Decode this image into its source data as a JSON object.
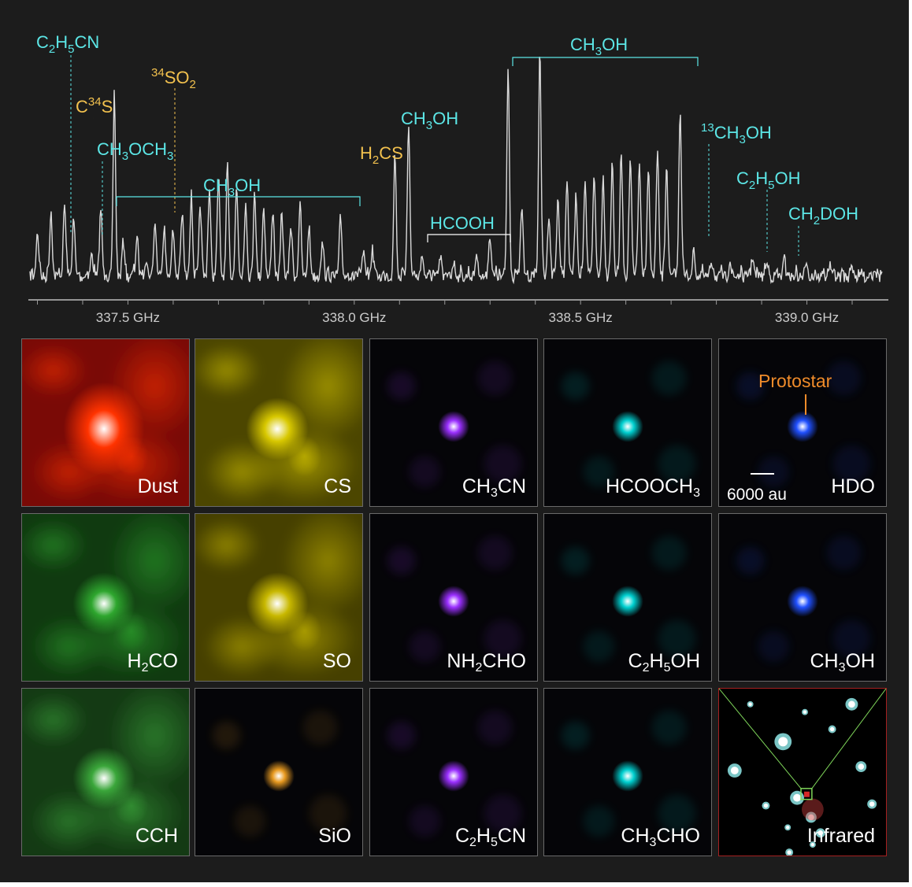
{
  "chart_data": {
    "type": "line",
    "title": "",
    "xlabel": "",
    "ylabel": "",
    "x_unit": "GHz",
    "xlim": [
      337.28,
      339.18
    ],
    "x_ticks": [
      337.5,
      338.0,
      338.5,
      339.0
    ],
    "x_tick_labels": [
      "337.5 GHz",
      "338.0 GHz",
      "338.5 GHz",
      "339.0 GHz"
    ],
    "grid": false,
    "line_color": "#d9d9d9",
    "lines": [
      {
        "x": 337.3,
        "h": 0.2
      },
      {
        "x": 337.33,
        "h": 0.28
      },
      {
        "x": 337.36,
        "h": 0.32
      },
      {
        "x": 337.38,
        "h": 0.25
      },
      {
        "x": 337.42,
        "h": 0.1
      },
      {
        "x": 337.44,
        "h": 0.3
      },
      {
        "x": 337.47,
        "h": 0.78
      },
      {
        "x": 337.49,
        "h": 0.15
      },
      {
        "x": 337.52,
        "h": 0.18
      },
      {
        "x": 337.54,
        "h": 0.08
      },
      {
        "x": 337.56,
        "h": 0.24
      },
      {
        "x": 337.58,
        "h": 0.22
      },
      {
        "x": 337.6,
        "h": 0.2
      },
      {
        "x": 337.62,
        "h": 0.28
      },
      {
        "x": 337.64,
        "h": 0.35
      },
      {
        "x": 337.66,
        "h": 0.3
      },
      {
        "x": 337.68,
        "h": 0.38
      },
      {
        "x": 337.7,
        "h": 0.42
      },
      {
        "x": 337.72,
        "h": 0.46
      },
      {
        "x": 337.74,
        "h": 0.4
      },
      {
        "x": 337.76,
        "h": 0.32
      },
      {
        "x": 337.78,
        "h": 0.36
      },
      {
        "x": 337.8,
        "h": 0.3
      },
      {
        "x": 337.82,
        "h": 0.28
      },
      {
        "x": 337.84,
        "h": 0.26
      },
      {
        "x": 337.86,
        "h": 0.22
      },
      {
        "x": 337.88,
        "h": 0.3
      },
      {
        "x": 337.9,
        "h": 0.2
      },
      {
        "x": 337.93,
        "h": 0.15
      },
      {
        "x": 337.97,
        "h": 0.25
      },
      {
        "x": 338.02,
        "h": 0.1
      },
      {
        "x": 338.04,
        "h": 0.12
      },
      {
        "x": 338.09,
        "h": 0.52
      },
      {
        "x": 338.12,
        "h": 0.68
      },
      {
        "x": 338.15,
        "h": 0.08
      },
      {
        "x": 338.19,
        "h": 0.07
      },
      {
        "x": 338.22,
        "h": 0.06
      },
      {
        "x": 338.27,
        "h": 0.09
      },
      {
        "x": 338.3,
        "h": 0.18
      },
      {
        "x": 338.34,
        "h": 0.9
      },
      {
        "x": 338.37,
        "h": 0.3
      },
      {
        "x": 338.41,
        "h": 0.98
      },
      {
        "x": 338.43,
        "h": 0.28
      },
      {
        "x": 338.45,
        "h": 0.35
      },
      {
        "x": 338.47,
        "h": 0.42
      },
      {
        "x": 338.49,
        "h": 0.36
      },
      {
        "x": 338.51,
        "h": 0.4
      },
      {
        "x": 338.53,
        "h": 0.46
      },
      {
        "x": 338.55,
        "h": 0.44
      },
      {
        "x": 338.57,
        "h": 0.5
      },
      {
        "x": 338.59,
        "h": 0.54
      },
      {
        "x": 338.61,
        "h": 0.52
      },
      {
        "x": 338.63,
        "h": 0.5
      },
      {
        "x": 338.65,
        "h": 0.46
      },
      {
        "x": 338.67,
        "h": 0.54
      },
      {
        "x": 338.69,
        "h": 0.48
      },
      {
        "x": 338.72,
        "h": 0.74
      },
      {
        "x": 338.75,
        "h": 0.1
      },
      {
        "x": 338.79,
        "h": 0.06
      },
      {
        "x": 338.83,
        "h": 0.05
      },
      {
        "x": 338.88,
        "h": 0.09
      },
      {
        "x": 338.91,
        "h": 0.06
      },
      {
        "x": 338.95,
        "h": 0.07
      },
      {
        "x": 339.0,
        "h": 0.05
      },
      {
        "x": 339.05,
        "h": 0.05
      },
      {
        "x": 339.1,
        "h": 0.04
      },
      {
        "x": 339.15,
        "h": 0.04
      }
    ],
    "annotations": [
      {
        "id": "c2h5cn",
        "prefix": "C",
        "sub": [
          [
            "C",
            "2"
          ],
          [
            "H",
            "5"
          ],
          [
            "CN",
            ""
          ]
        ],
        "x": 337.38,
        "color": "cyan"
      },
      {
        "id": "c34s",
        "x": 337.47,
        "color": "orange"
      },
      {
        "id": "ch3och3",
        "x": 337.49,
        "color": "cyan"
      },
      {
        "id": "so2",
        "x": 337.6,
        "color": "orange"
      },
      {
        "id": "ch3oh_bracket1",
        "x_from": 337.5,
        "x_to": 337.98,
        "color": "cyan"
      },
      {
        "id": "h2cs",
        "x": 338.09,
        "color": "orange"
      },
      {
        "id": "ch3oh_single",
        "x": 338.12,
        "color": "cyan"
      },
      {
        "id": "hcooh_bracket",
        "x_from": 338.14,
        "x_to": 338.32,
        "color": "white"
      },
      {
        "id": "ch3oh_bracket2",
        "x_from": 338.34,
        "x_to": 338.73,
        "color": "cyan"
      },
      {
        "id": "c13h3oh",
        "x": 338.75,
        "color": "cyan"
      },
      {
        "id": "c2h5oh",
        "x": 338.89,
        "color": "cyan"
      },
      {
        "id": "ch2doh",
        "x": 338.96,
        "color": "cyan"
      }
    ]
  },
  "labels": {
    "c2h5cn": "C2H5CN",
    "c34s": "C34S",
    "ch3och3": "CH3OCH3",
    "so2": "34SO2",
    "ch3oh_bracket1": "CH3OH",
    "h2cs": "H2CS",
    "ch3oh_single": "CH3OH",
    "hcooh": "HCOOH",
    "ch3oh_bracket2": "CH3OH",
    "c13h3oh": "13CH3OH",
    "c2h5oh": "C2H5OH",
    "ch2doh": "CH2DOH"
  },
  "colors": {
    "cyan": "#5ce6e6",
    "orange": "#f2c14e",
    "white": "#ffffff",
    "background": "#1c1c1c"
  },
  "panels": [
    {
      "id": "dust",
      "label": "Dust",
      "color": "#ff3300"
    },
    {
      "id": "cs",
      "label": "CS",
      "color": "#d8c800"
    },
    {
      "id": "ch3cn",
      "label": "CH3CN",
      "color": "#9b30ff"
    },
    {
      "id": "hcooch3",
      "label": "HCOOCH3",
      "color": "#00d0d0"
    },
    {
      "id": "hdo",
      "label": "HDO",
      "color": "#2050ff"
    },
    {
      "id": "h2co",
      "label": "H2CO",
      "color": "#2ea62e"
    },
    {
      "id": "so",
      "label": "SO",
      "color": "#c8b800"
    },
    {
      "id": "nh2cho",
      "label": "NH2CHO",
      "color": "#9b30ff"
    },
    {
      "id": "c2h5oh_map",
      "label": "C2H5OH",
      "color": "#00d0d0"
    },
    {
      "id": "ch3oh_map",
      "label": "CH3OH",
      "color": "#2050ff"
    },
    {
      "id": "cch",
      "label": "CCH",
      "color": "#3aa63a"
    },
    {
      "id": "sio",
      "label": "SiO",
      "color": "#e89a20"
    },
    {
      "id": "c2h5cn_map",
      "label": "C2H5CN",
      "color": "#9b30ff"
    },
    {
      "id": "ch3cho",
      "label": "CH3CHO",
      "color": "#00d0d0"
    },
    {
      "id": "infrared",
      "label": "Infrared",
      "color": "#ffffff"
    }
  ],
  "protostar_label": "Protostar",
  "scale_label": "6000 au"
}
